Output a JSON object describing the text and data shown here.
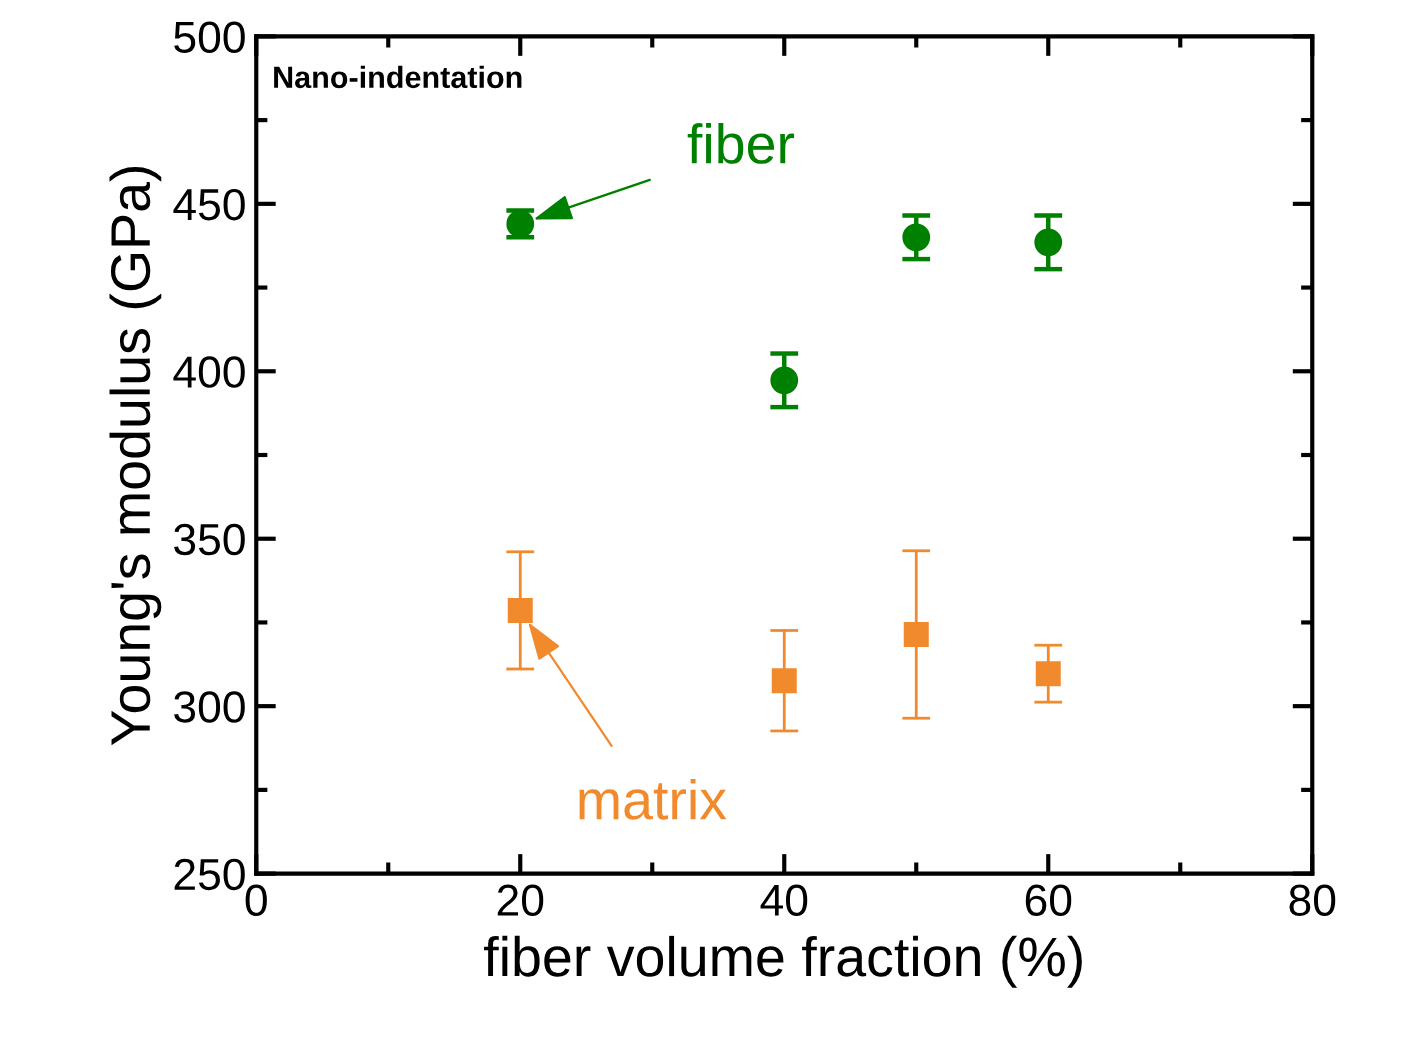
{
  "chart_data": {
    "type": "scatter",
    "xlabel": "fiber volume fraction (%)",
    "ylabel": "Young's modulus (GPa)",
    "x": [
      20,
      40,
      50,
      60
    ],
    "series": [
      {
        "color": "#008000",
        "marker": "circle",
        "values": [
          444,
          397.3,
          440,
          438.5
        ],
        "errors": [
          4,
          8,
          6.5,
          8
        ]
      },
      {
        "color": "#f08a2c",
        "marker": "square",
        "values": [
          328.6,
          307.6,
          321.4,
          309.7
        ],
        "errors": [
          17.5,
          15,
          25,
          8.5
        ]
      }
    ],
    "annotations": [
      "Nano-indentation",
      {
        "text": "fiber",
        "x": 20,
        "y": 444
      },
      {
        "text": "matrix",
        "x": 20,
        "y": 328.6
      }
    ],
    "xlim": [
      0,
      80
    ],
    "xticks": [
      0,
      20,
      40,
      60,
      80
    ],
    "ylim": [
      250,
      500
    ],
    "yticks": [
      250,
      300,
      350,
      400,
      450,
      500
    ],
    "grid": false,
    "legend": false
  }
}
